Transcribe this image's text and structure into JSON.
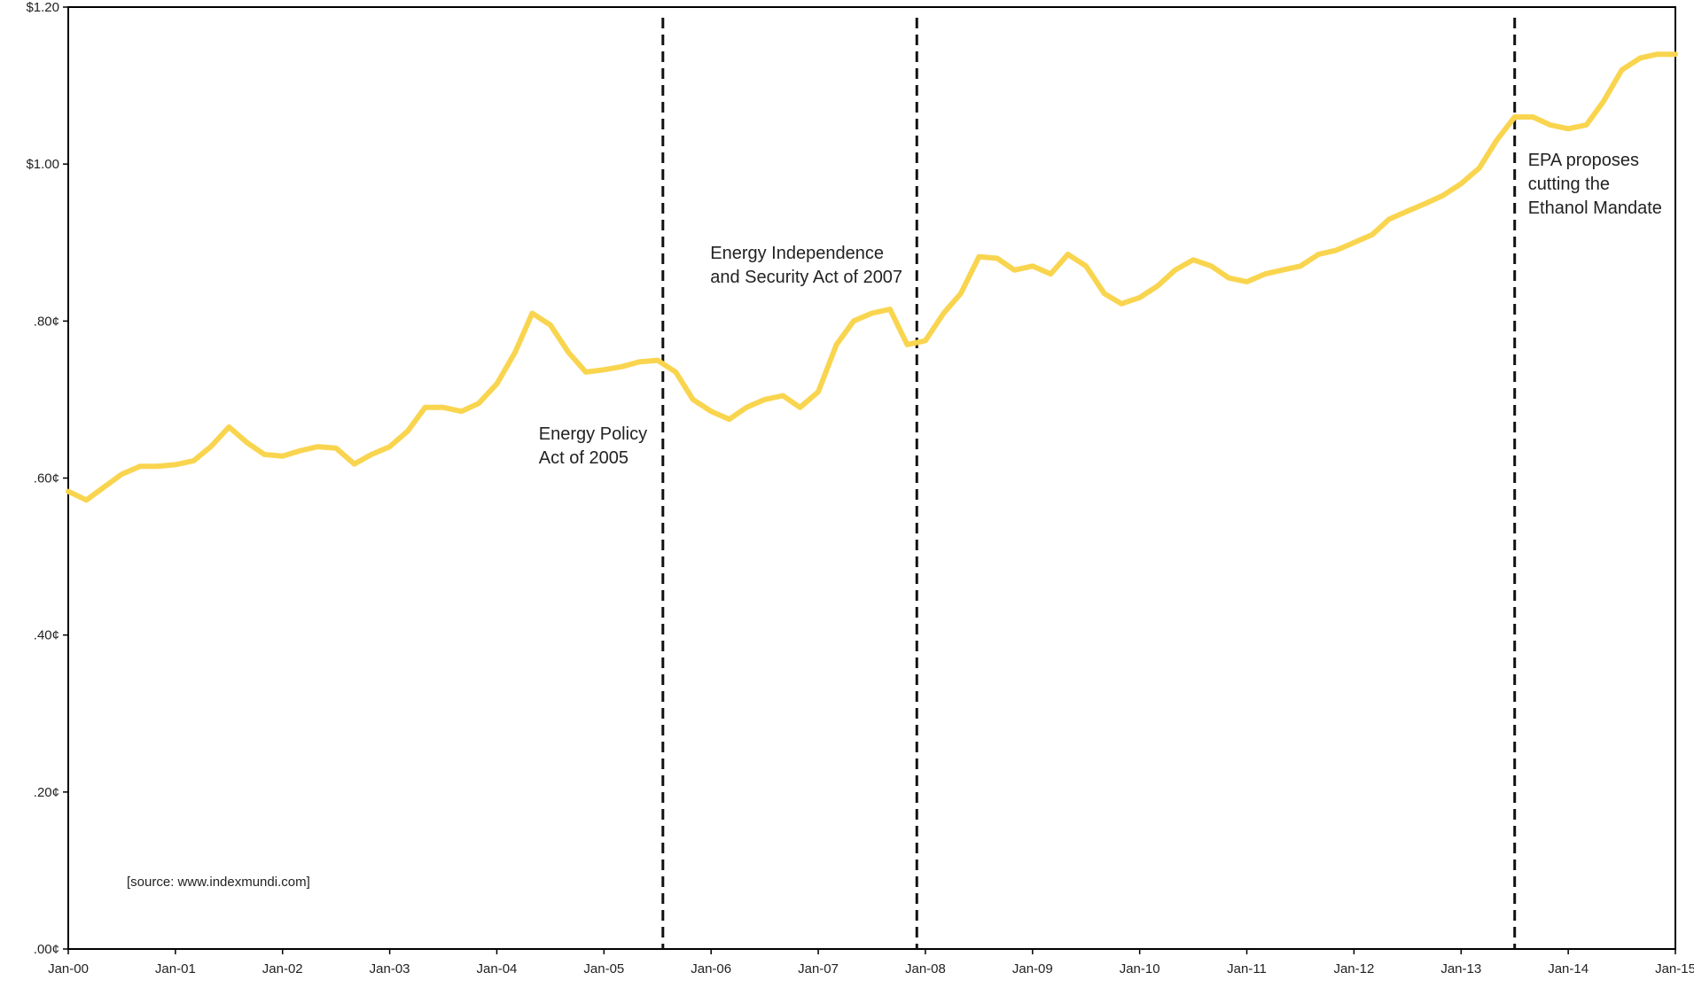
{
  "chart_data": {
    "type": "line",
    "title": "",
    "xlabel": "",
    "ylabel": "",
    "x_tick_labels": [
      "Jan-00",
      "Jan-01",
      "Jan-02",
      "Jan-03",
      "Jan-04",
      "Jan-05",
      "Jan-06",
      "Jan-07",
      "Jan-08",
      "Jan-09",
      "Jan-10",
      "Jan-11",
      "Jan-12",
      "Jan-13",
      "Jan-14",
      "Jan-15"
    ],
    "y_tick_labels": [
      ".00¢",
      ".20¢",
      ".40¢",
      ".60¢",
      ".80¢",
      "$1.00",
      "$1.20"
    ],
    "y_ticks": [
      0,
      0.2,
      0.4,
      0.6,
      0.8,
      1.0,
      1.2
    ],
    "ylim": [
      0,
      1.2
    ],
    "xlim": [
      2000.0,
      2015.0
    ],
    "grid": false,
    "legend": "none",
    "series": [
      {
        "color": "#F9D54F",
        "x": [
          2000.0,
          2000.17,
          2000.33,
          2000.5,
          2000.67,
          2000.83,
          2001.0,
          2001.17,
          2001.33,
          2001.5,
          2001.67,
          2001.83,
          2002.0,
          2002.17,
          2002.33,
          2002.5,
          2002.67,
          2002.83,
          2003.0,
          2003.17,
          2003.33,
          2003.5,
          2003.67,
          2003.83,
          2004.0,
          2004.17,
          2004.33,
          2004.5,
          2004.67,
          2004.83,
          2005.0,
          2005.17,
          2005.33,
          2005.5,
          2005.67,
          2005.83,
          2006.0,
          2006.17,
          2006.33,
          2006.5,
          2006.67,
          2006.83,
          2007.0,
          2007.17,
          2007.33,
          2007.5,
          2007.67,
          2007.83,
          2008.0,
          2008.17,
          2008.33,
          2008.5,
          2008.67,
          2008.83,
          2009.0,
          2009.17,
          2009.33,
          2009.5,
          2009.67,
          2009.83,
          2010.0,
          2010.17,
          2010.33,
          2010.5,
          2010.67,
          2010.83,
          2011.0,
          2011.17,
          2011.33,
          2011.5,
          2011.67,
          2011.83,
          2012.0,
          2012.17,
          2012.33,
          2012.5,
          2012.67,
          2012.83,
          2013.0,
          2013.17,
          2013.33,
          2013.5,
          2013.67,
          2013.83,
          2014.0,
          2014.17,
          2014.33,
          2014.5,
          2014.67,
          2014.83,
          2015.0
        ],
        "values": [
          0.583,
          0.572,
          0.588,
          0.605,
          0.615,
          0.615,
          0.617,
          0.622,
          0.64,
          0.665,
          0.645,
          0.63,
          0.628,
          0.635,
          0.64,
          0.638,
          0.618,
          0.63,
          0.64,
          0.66,
          0.69,
          0.69,
          0.685,
          0.695,
          0.72,
          0.76,
          0.81,
          0.795,
          0.76,
          0.735,
          0.738,
          0.742,
          0.748,
          0.75,
          0.735,
          0.7,
          0.685,
          0.675,
          0.69,
          0.7,
          0.705,
          0.69,
          0.71,
          0.77,
          0.8,
          0.81,
          0.815,
          0.77,
          0.775,
          0.81,
          0.835,
          0.882,
          0.88,
          0.865,
          0.87,
          0.86,
          0.885,
          0.87,
          0.835,
          0.822,
          0.83,
          0.845,
          0.865,
          0.878,
          0.87,
          0.855,
          0.85,
          0.86,
          0.865,
          0.87,
          0.885,
          0.89,
          0.9,
          0.91,
          0.93,
          0.94,
          0.95,
          0.96,
          0.975,
          0.995,
          1.03,
          1.06,
          1.06,
          1.05,
          1.045,
          1.05,
          1.08,
          1.12,
          1.135,
          1.14,
          1.14
        ]
      }
    ],
    "event_lines": [
      {
        "x": 2005.55,
        "label": [
          "Energy Policy",
          "Act of 2005"
        ]
      },
      {
        "x": 2007.92,
        "label": [
          "Energy Independence",
          "and Security Act of 2007"
        ]
      },
      {
        "x": 2013.5,
        "label": [
          "EPA proposes",
          "cutting the",
          "Ethanol Mandate"
        ]
      }
    ],
    "source_note": "[source: www.indexmundi.com]"
  }
}
